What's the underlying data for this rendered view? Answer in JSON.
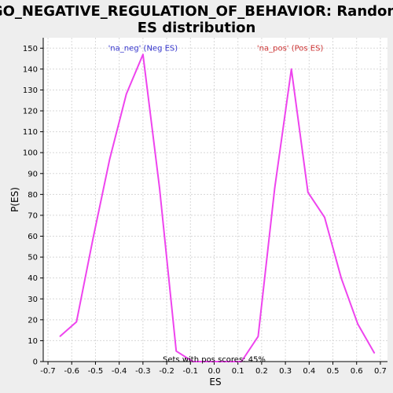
{
  "chart_data": {
    "type": "line",
    "title": "GO_NEGATIVE_REGULATION_OF_BEHAVIOR: Random ES distribution",
    "title_lines": [
      "GO_NEGATIVE_REGULATION_OF_BEHAVIOR: Random",
      "ES distribution"
    ],
    "xlabel": "ES",
    "ylabel": "P(ES)",
    "xlim": [
      -0.72,
      0.73
    ],
    "ylim": [
      0,
      155
    ],
    "xticks": [
      "-0.7",
      "-0.6",
      "-0.5",
      "-0.4",
      "-0.3",
      "-0.2",
      "-0.1",
      "0.0",
      "0.1",
      "0.2",
      "0.3",
      "0.4",
      "0.5",
      "0.6",
      "0.7"
    ],
    "yticks": [
      "0",
      "10",
      "20",
      "30",
      "40",
      "50",
      "60",
      "70",
      "80",
      "90",
      "100",
      "110",
      "120",
      "130",
      "140",
      "150"
    ],
    "grid": true,
    "series": [
      {
        "color": "#ee44ee",
        "x": [
          -0.65,
          -0.58,
          -0.51,
          -0.44,
          -0.37,
          -0.3,
          -0.23,
          -0.16,
          -0.09,
          0.115,
          0.185,
          0.255,
          0.325,
          0.395,
          0.465,
          0.535,
          0.605,
          0.675
        ],
        "y": [
          12,
          19,
          59,
          97,
          128,
          147,
          83,
          5,
          0,
          0,
          12,
          83,
          140,
          81,
          69,
          40,
          18,
          4
        ]
      }
    ],
    "annotations": [
      {
        "text": "'na_neg' (Neg ES)",
        "x": -0.3,
        "y": 150,
        "color": "#3333cc"
      },
      {
        "text": "'na_pos' (Pos ES)",
        "x": 0.32,
        "y": 150,
        "color": "#cc3333"
      },
      {
        "text": "Sets with pos scores: 45%",
        "x": 0.0,
        "y": 1,
        "color": "#000000"
      }
    ]
  },
  "colors": {
    "background": "#eeeeee",
    "plot_background": "#ffffff",
    "line": "#ee44ee"
  }
}
